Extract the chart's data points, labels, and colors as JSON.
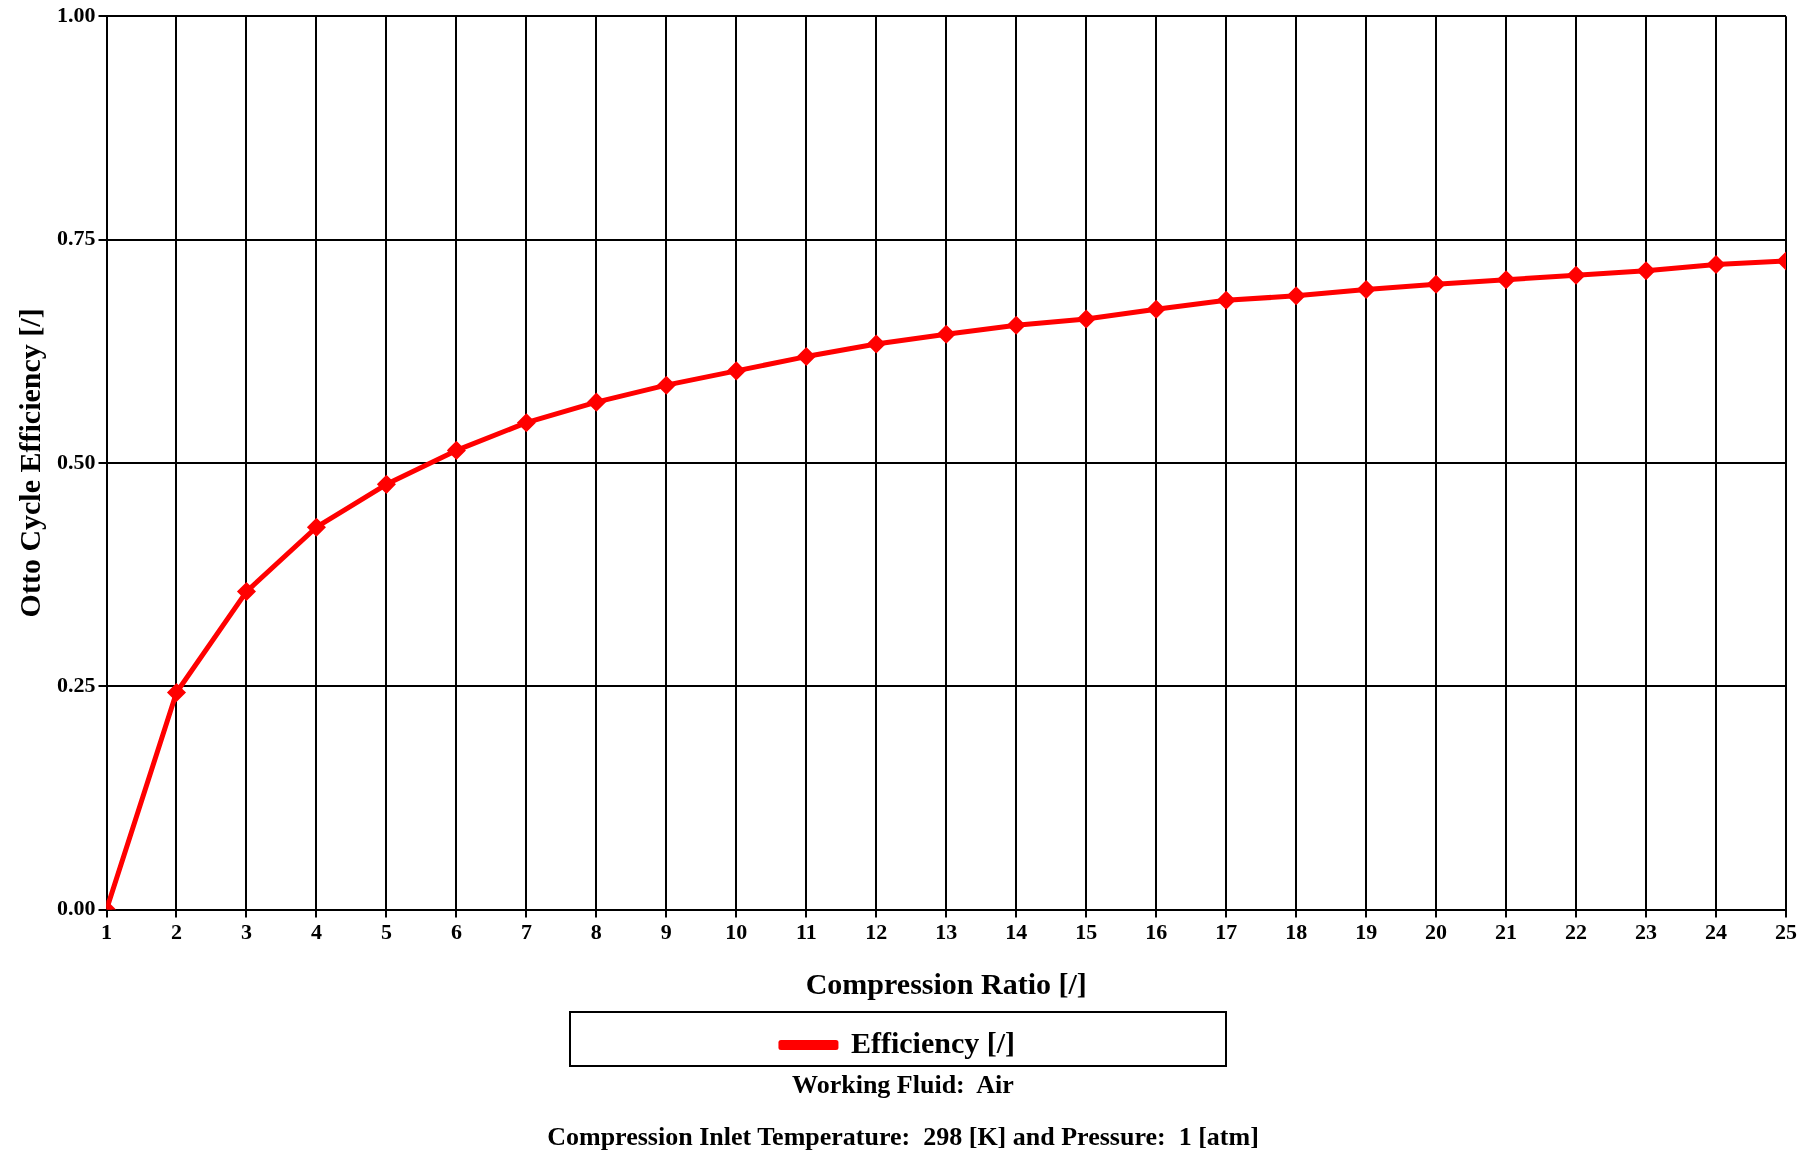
{
  "chart_data": {
    "type": "line",
    "xlabel": "Compression Ratio [/]",
    "ylabel": "Otto Cycle Efficiency [/]",
    "x": [
      1,
      2,
      3,
      4,
      5,
      6,
      7,
      8,
      9,
      10,
      11,
      12,
      13,
      14,
      15,
      16,
      17,
      18,
      19,
      20,
      21,
      22,
      23,
      24,
      25
    ],
    "series": [
      {
        "name": "Efficiency [/]",
        "color": "#ff0000",
        "values": [
          0,
          0.243,
          0.356,
          0.428,
          0.476,
          0.514,
          0.545,
          0.568,
          0.587,
          0.603,
          0.619,
          0.633,
          0.644,
          0.654,
          0.661,
          0.672,
          0.682,
          0.687,
          0.694,
          0.7,
          0.705,
          0.71,
          0.715,
          0.722,
          0.726
        ]
      }
    ],
    "xlim": [
      1,
      25
    ],
    "xticks": [
      1,
      2,
      3,
      4,
      5,
      6,
      7,
      8,
      9,
      10,
      11,
      12,
      13,
      14,
      15,
      16,
      17,
      18,
      19,
      20,
      21,
      22,
      23,
      24,
      25
    ],
    "ylim": [
      0,
      1
    ],
    "yticks": [
      {
        "value": 0,
        "label": "0.00"
      },
      {
        "value": 0.25,
        "label": "0.25"
      },
      {
        "value": 0.5,
        "label": "0.50"
      },
      {
        "value": 0.75,
        "label": "0.75"
      },
      {
        "value": 1,
        "label": "1.00"
      }
    ],
    "grid": true,
    "legend": "bottom",
    "marker": "diamond",
    "line_style": "solid",
    "annotations": [
      "Working Fluid:  Air",
      "Compression Inlet Temperature:  298 [K] and Pressure:  1 [atm]"
    ]
  }
}
